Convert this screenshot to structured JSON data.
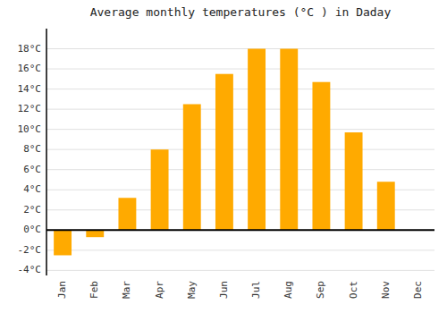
{
  "chart_data": {
    "type": "bar",
    "title": "Average monthly temperatures (°C ) in Daday",
    "categories": [
      "Jan",
      "Feb",
      "Mar",
      "Apr",
      "May",
      "Jun",
      "Jul",
      "Aug",
      "Sep",
      "Oct",
      "Nov",
      "Dec"
    ],
    "values": [
      -2.5,
      -0.7,
      3.2,
      8.0,
      12.5,
      15.5,
      18.0,
      18.0,
      14.7,
      9.7,
      4.8,
      0.0
    ],
    "color": "#FFAA00",
    "ylim": [
      -4.5,
      20.0
    ],
    "yticks": [
      {
        "value": -4,
        "label": "-4°C"
      },
      {
        "value": -2,
        "label": "-2°C"
      },
      {
        "value": 0,
        "label": "0°C"
      },
      {
        "value": 2,
        "label": "2°C"
      },
      {
        "value": 4,
        "label": "4°C"
      },
      {
        "value": 6,
        "label": "6°C"
      },
      {
        "value": 8,
        "label": "8°C"
      },
      {
        "value": 10,
        "label": "10°C"
      },
      {
        "value": 12,
        "label": "12°C"
      },
      {
        "value": 14,
        "label": "14°C"
      },
      {
        "value": 16,
        "label": "16°C"
      },
      {
        "value": 18,
        "label": "18°C"
      }
    ],
    "grid": true
  }
}
